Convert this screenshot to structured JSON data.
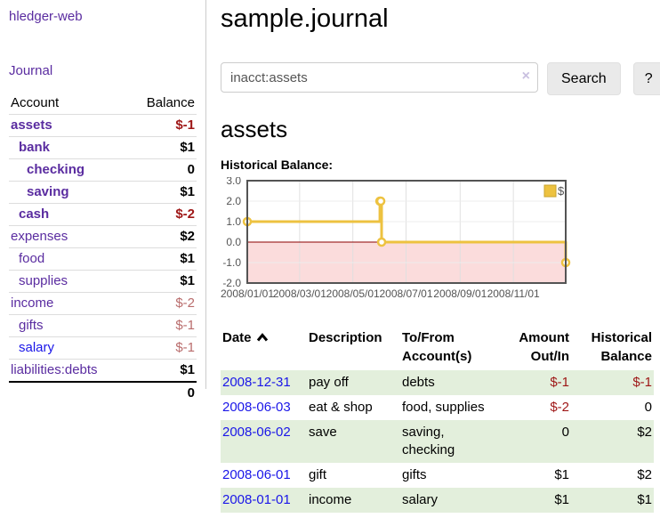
{
  "colors": {
    "link_purple": "#5a2ca0",
    "link_blue": "#1a16e8",
    "negative_strong": "#9e1616",
    "negative_soft": "#b96c6c",
    "row_stripe_green": "#e3efdc",
    "chart_line_yellow": "#edc240",
    "chart_negative_region": "#fbdcdc",
    "chart_zero_line": "#8b0000",
    "chart_border": "#545454"
  },
  "sidebar": {
    "brand": "hledger-web",
    "journal_link": "Journal",
    "accounts_table": {
      "account_header": "Account",
      "balance_header": "Balance",
      "rows": [
        {
          "name": "assets",
          "indent": 0,
          "bold": true,
          "link_color": "purple",
          "balance": "$-1",
          "balance_class": "neg-strong"
        },
        {
          "name": "bank",
          "indent": 1,
          "bold": true,
          "link_color": "purple",
          "balance": "$1",
          "balance_class": "pos"
        },
        {
          "name": "checking",
          "indent": 2,
          "bold": true,
          "link_color": "purple",
          "balance": "0",
          "balance_class": "pos"
        },
        {
          "name": "saving",
          "indent": 2,
          "bold": true,
          "link_color": "purple",
          "balance": "$1",
          "balance_class": "pos"
        },
        {
          "name": "cash",
          "indent": 1,
          "bold": true,
          "link_color": "purple",
          "balance": "$-2",
          "balance_class": "neg-strong"
        },
        {
          "name": "expenses",
          "indent": 0,
          "bold": false,
          "link_color": "purple",
          "balance": "$2",
          "balance_class": "pos"
        },
        {
          "name": "food",
          "indent": 1,
          "bold": false,
          "link_color": "purple",
          "balance": "$1",
          "balance_class": "pos"
        },
        {
          "name": "supplies",
          "indent": 1,
          "bold": false,
          "link_color": "purple",
          "balance": "$1",
          "balance_class": "pos"
        },
        {
          "name": "income",
          "indent": 0,
          "bold": false,
          "link_color": "purple",
          "balance": "$-2",
          "balance_class": "neg-soft"
        },
        {
          "name": "gifts",
          "indent": 1,
          "bold": false,
          "link_color": "purple",
          "balance": "$-1",
          "balance_class": "neg-soft"
        },
        {
          "name": "salary",
          "indent": 1,
          "bold": false,
          "link_color": "blue",
          "balance": "$-1",
          "balance_class": "neg-soft"
        },
        {
          "name": "liabilities:debts",
          "indent": 0,
          "bold": false,
          "link_color": "purple",
          "balance": "$1",
          "balance_class": "pos",
          "last": true
        }
      ],
      "total": "0"
    }
  },
  "main": {
    "title": "sample.journal",
    "search": {
      "value": "inacct:assets",
      "clear_icon": "×",
      "search_button": "Search",
      "help_button": "?"
    },
    "account_heading": "assets",
    "chart_label": "Historical Balance:",
    "register_table": {
      "headers": {
        "date": "Date",
        "description": "Description",
        "accounts": "To/From\nAccount(s)",
        "amount": "Amount\nOut/In",
        "balance": "Historical\nBalance"
      },
      "sort": {
        "column": "date",
        "direction": "ascending"
      },
      "rows": [
        {
          "date": "2008-12-31",
          "description": "pay off",
          "accounts": "debts",
          "wrap": false,
          "amount": "$-1",
          "amount_class": "neg",
          "balance": "$-1",
          "balance_class": "neg",
          "stripe": true
        },
        {
          "date": "2008-06-03",
          "description": "eat & shop",
          "accounts": "food, supplies",
          "wrap": false,
          "amount": "$-2",
          "amount_class": "neg",
          "balance": "0",
          "balance_class": "pos",
          "stripe": false
        },
        {
          "date": "2008-06-02",
          "description": "save",
          "accounts": "saving, checking",
          "wrap": true,
          "amount": "0",
          "amount_class": "pos",
          "balance": "$2",
          "balance_class": "pos",
          "stripe": true
        },
        {
          "date": "2008-06-01",
          "description": "gift",
          "accounts": "gifts",
          "wrap": false,
          "amount": "$1",
          "amount_class": "pos",
          "balance": "$2",
          "balance_class": "pos",
          "stripe": false
        },
        {
          "date": "2008-01-01",
          "description": "income",
          "accounts": "salary",
          "wrap": false,
          "amount": "$1",
          "amount_class": "pos",
          "balance": "$1",
          "balance_class": "pos",
          "stripe": true
        }
      ]
    }
  },
  "chart_data": {
    "type": "line",
    "title": "Historical Balance:",
    "steps": true,
    "series": [
      {
        "name": "$",
        "color": "#edc240",
        "points": [
          [
            "2008-01-01",
            1
          ],
          [
            "2008-06-01",
            2
          ],
          [
            "2008-06-02",
            2
          ],
          [
            "2008-06-03",
            0
          ],
          [
            "2008-12-31",
            -1
          ]
        ]
      }
    ],
    "x_range": [
      "2008-01-01",
      "2008-12-31"
    ],
    "ylim": [
      -2,
      3
    ],
    "y_ticks": [
      "3.0",
      "2.0",
      "1.0",
      "0.0",
      "-1.0",
      "-2.0"
    ],
    "x_ticks": [
      {
        "date": "2008-01-01",
        "label": "2008/01/01"
      },
      {
        "date": "2008-03-01",
        "label": "2008/03/01"
      },
      {
        "date": "2008-05-01",
        "label": "2008/05/01"
      },
      {
        "date": "2008-07-01",
        "label": "2008/07/01"
      },
      {
        "date": "2008-09-01",
        "label": "2008/09/01"
      },
      {
        "date": "2008-11-01",
        "label": "2008/11/01"
      }
    ],
    "grid": true,
    "legend_position": "top-right",
    "legend_label": "$",
    "negative_region": true
  }
}
